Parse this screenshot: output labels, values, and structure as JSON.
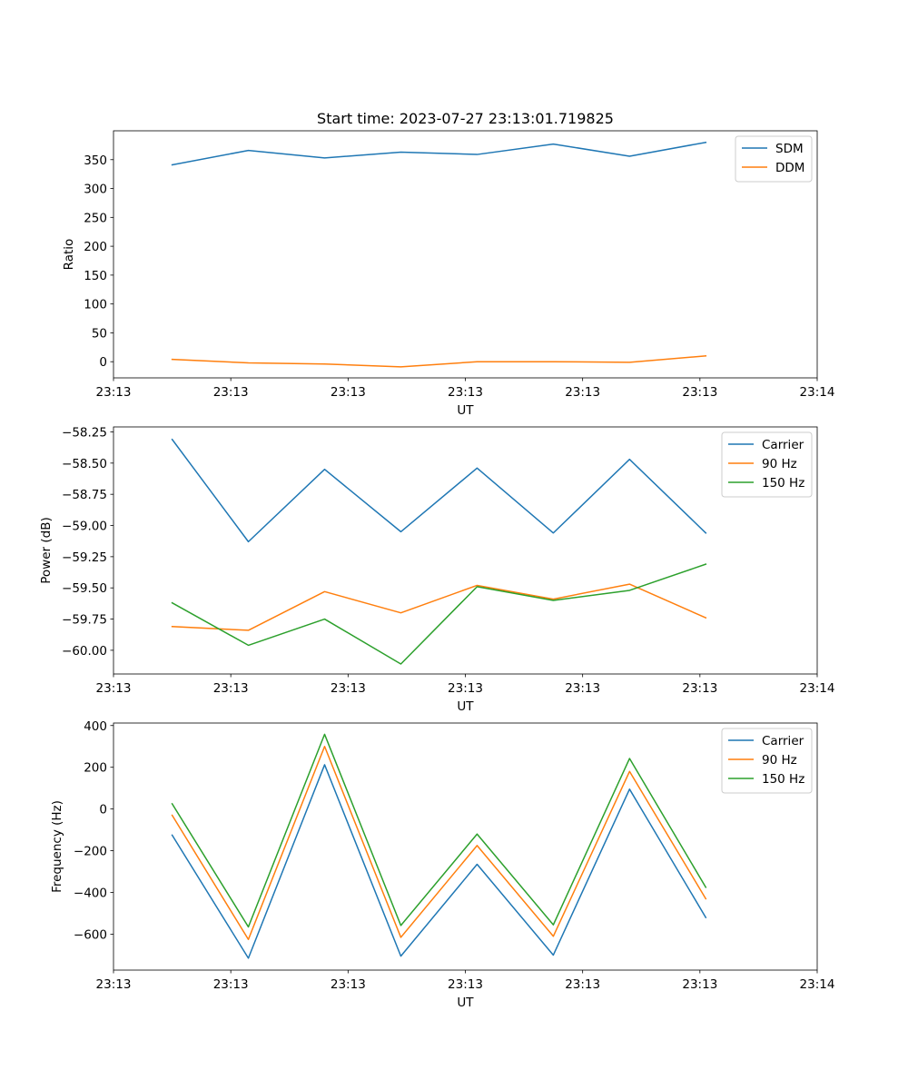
{
  "chart_data": [
    {
      "type": "line",
      "title": "Start time: 2023-07-27 23:13:01.719825",
      "xlabel": "UT",
      "ylabel": "Ratio",
      "x": [
        0.5,
        1.15,
        1.8,
        2.45,
        3.1,
        3.75,
        4.4,
        5.05
      ],
      "xlim": [
        0,
        6
      ],
      "xticks": [
        0,
        1,
        2,
        3,
        4,
        5,
        6
      ],
      "xtick_labels": [
        "23:13",
        "23:13",
        "23:13",
        "23:13",
        "23:13",
        "23:13",
        "23:14"
      ],
      "ylim": [
        -28,
        400
      ],
      "yticks": [
        0,
        50,
        100,
        150,
        200,
        250,
        300,
        350
      ],
      "ytick_labels": [
        "0",
        "50",
        "100",
        "150",
        "200",
        "250",
        "300",
        "350"
      ],
      "legend_position": "top-right",
      "series": [
        {
          "name": "SDM",
          "color": "#1f77b4",
          "values": [
            341,
            366,
            353,
            363,
            359,
            377,
            356,
            380
          ]
        },
        {
          "name": "DDM",
          "color": "#ff7f0e",
          "values": [
            4,
            -2,
            -4,
            -9,
            0,
            0,
            -1,
            10
          ]
        }
      ]
    },
    {
      "type": "line",
      "title": "",
      "xlabel": "UT",
      "ylabel": "Power (dB)",
      "x": [
        0.5,
        1.15,
        1.8,
        2.45,
        3.1,
        3.75,
        4.4,
        5.05
      ],
      "xlim": [
        0,
        6
      ],
      "xticks": [
        0,
        1,
        2,
        3,
        4,
        5,
        6
      ],
      "xtick_labels": [
        "23:13",
        "23:13",
        "23:13",
        "23:13",
        "23:13",
        "23:13",
        "23:14"
      ],
      "ylim": [
        -60.19,
        -58.21
      ],
      "yticks": [
        -60.0,
        -59.75,
        -59.5,
        -59.25,
        -59.0,
        -58.75,
        -58.5,
        -58.25
      ],
      "ytick_labels": [
        "−60.00",
        "−59.75",
        "−59.50",
        "−59.25",
        "−59.00",
        "−58.75",
        "−58.50",
        "−58.25"
      ],
      "legend_position": "top-right",
      "series": [
        {
          "name": "Carrier",
          "color": "#1f77b4",
          "values": [
            -58.31,
            -59.13,
            -58.55,
            -59.05,
            -58.54,
            -59.06,
            -58.47,
            -59.06
          ]
        },
        {
          "name": "90 Hz",
          "color": "#ff7f0e",
          "values": [
            -59.81,
            -59.84,
            -59.53,
            -59.7,
            -59.48,
            -59.59,
            -59.47,
            -59.74
          ]
        },
        {
          "name": "150 Hz",
          "color": "#2ca02c",
          "values": [
            -59.62,
            -59.96,
            -59.75,
            -60.11,
            -59.49,
            -59.6,
            -59.52,
            -59.31
          ]
        }
      ]
    },
    {
      "type": "line",
      "title": "",
      "xlabel": "UT",
      "ylabel": "Frequency (Hz)",
      "x": [
        0.5,
        1.15,
        1.8,
        2.45,
        3.1,
        3.75,
        4.4,
        5.05
      ],
      "xlim": [
        0,
        6
      ],
      "xticks": [
        0,
        1,
        2,
        3,
        4,
        5,
        6
      ],
      "xtick_labels": [
        "23:13",
        "23:13",
        "23:13",
        "23:13",
        "23:13",
        "23:13",
        "23:14"
      ],
      "ylim": [
        -772,
        412
      ],
      "yticks": [
        -600,
        -400,
        -200,
        0,
        200,
        400
      ],
      "ytick_labels": [
        "−600",
        "−400",
        "−200",
        "0",
        "200",
        "400"
      ],
      "legend_position": "top-right",
      "series": [
        {
          "name": "Carrier",
          "color": "#1f77b4",
          "values": [
            -125,
            -715,
            212,
            -705,
            -265,
            -700,
            95,
            -520
          ]
        },
        {
          "name": "90 Hz",
          "color": "#ff7f0e",
          "values": [
            -30,
            -625,
            300,
            -615,
            -175,
            -610,
            180,
            -430
          ]
        },
        {
          "name": "150 Hz",
          "color": "#2ca02c",
          "values": [
            25,
            -565,
            358,
            -558,
            -120,
            -555,
            242,
            -375
          ]
        }
      ]
    }
  ]
}
